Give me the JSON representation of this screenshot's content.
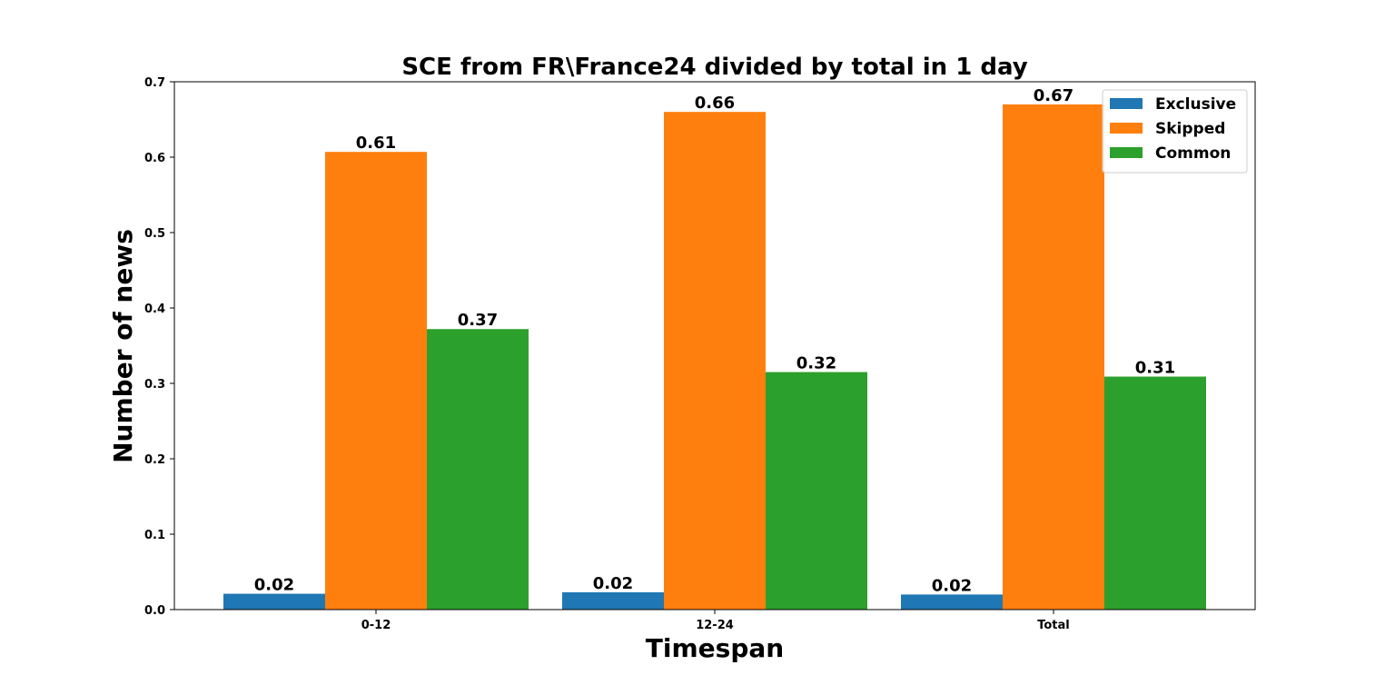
{
  "chart_data": {
    "type": "bar",
    "title": "SCE from FR\\France24 divided by total in 1 day",
    "xlabel": "Timespan",
    "ylabel": "Number of news",
    "categories": [
      "0-12",
      "12-24",
      "Total"
    ],
    "series": [
      {
        "name": "Exclusive",
        "color": "#1f77b4",
        "values": [
          0.021,
          0.023,
          0.02
        ],
        "labels": [
          "0.02",
          "0.02",
          "0.02"
        ]
      },
      {
        "name": "Skipped",
        "color": "#ff7f0e",
        "values": [
          0.607,
          0.66,
          0.67
        ],
        "labels": [
          "0.61",
          "0.66",
          "0.67"
        ]
      },
      {
        "name": "Common",
        "color": "#2ca02c",
        "values": [
          0.372,
          0.315,
          0.309
        ],
        "labels": [
          "0.37",
          "0.32",
          "0.31"
        ]
      }
    ],
    "ylim": [
      0,
      0.7
    ],
    "yticks": [
      "0.0",
      "0.1",
      "0.2",
      "0.3",
      "0.4",
      "0.5",
      "0.6",
      "0.7"
    ],
    "legend_position": "top-right",
    "grid": false
  }
}
